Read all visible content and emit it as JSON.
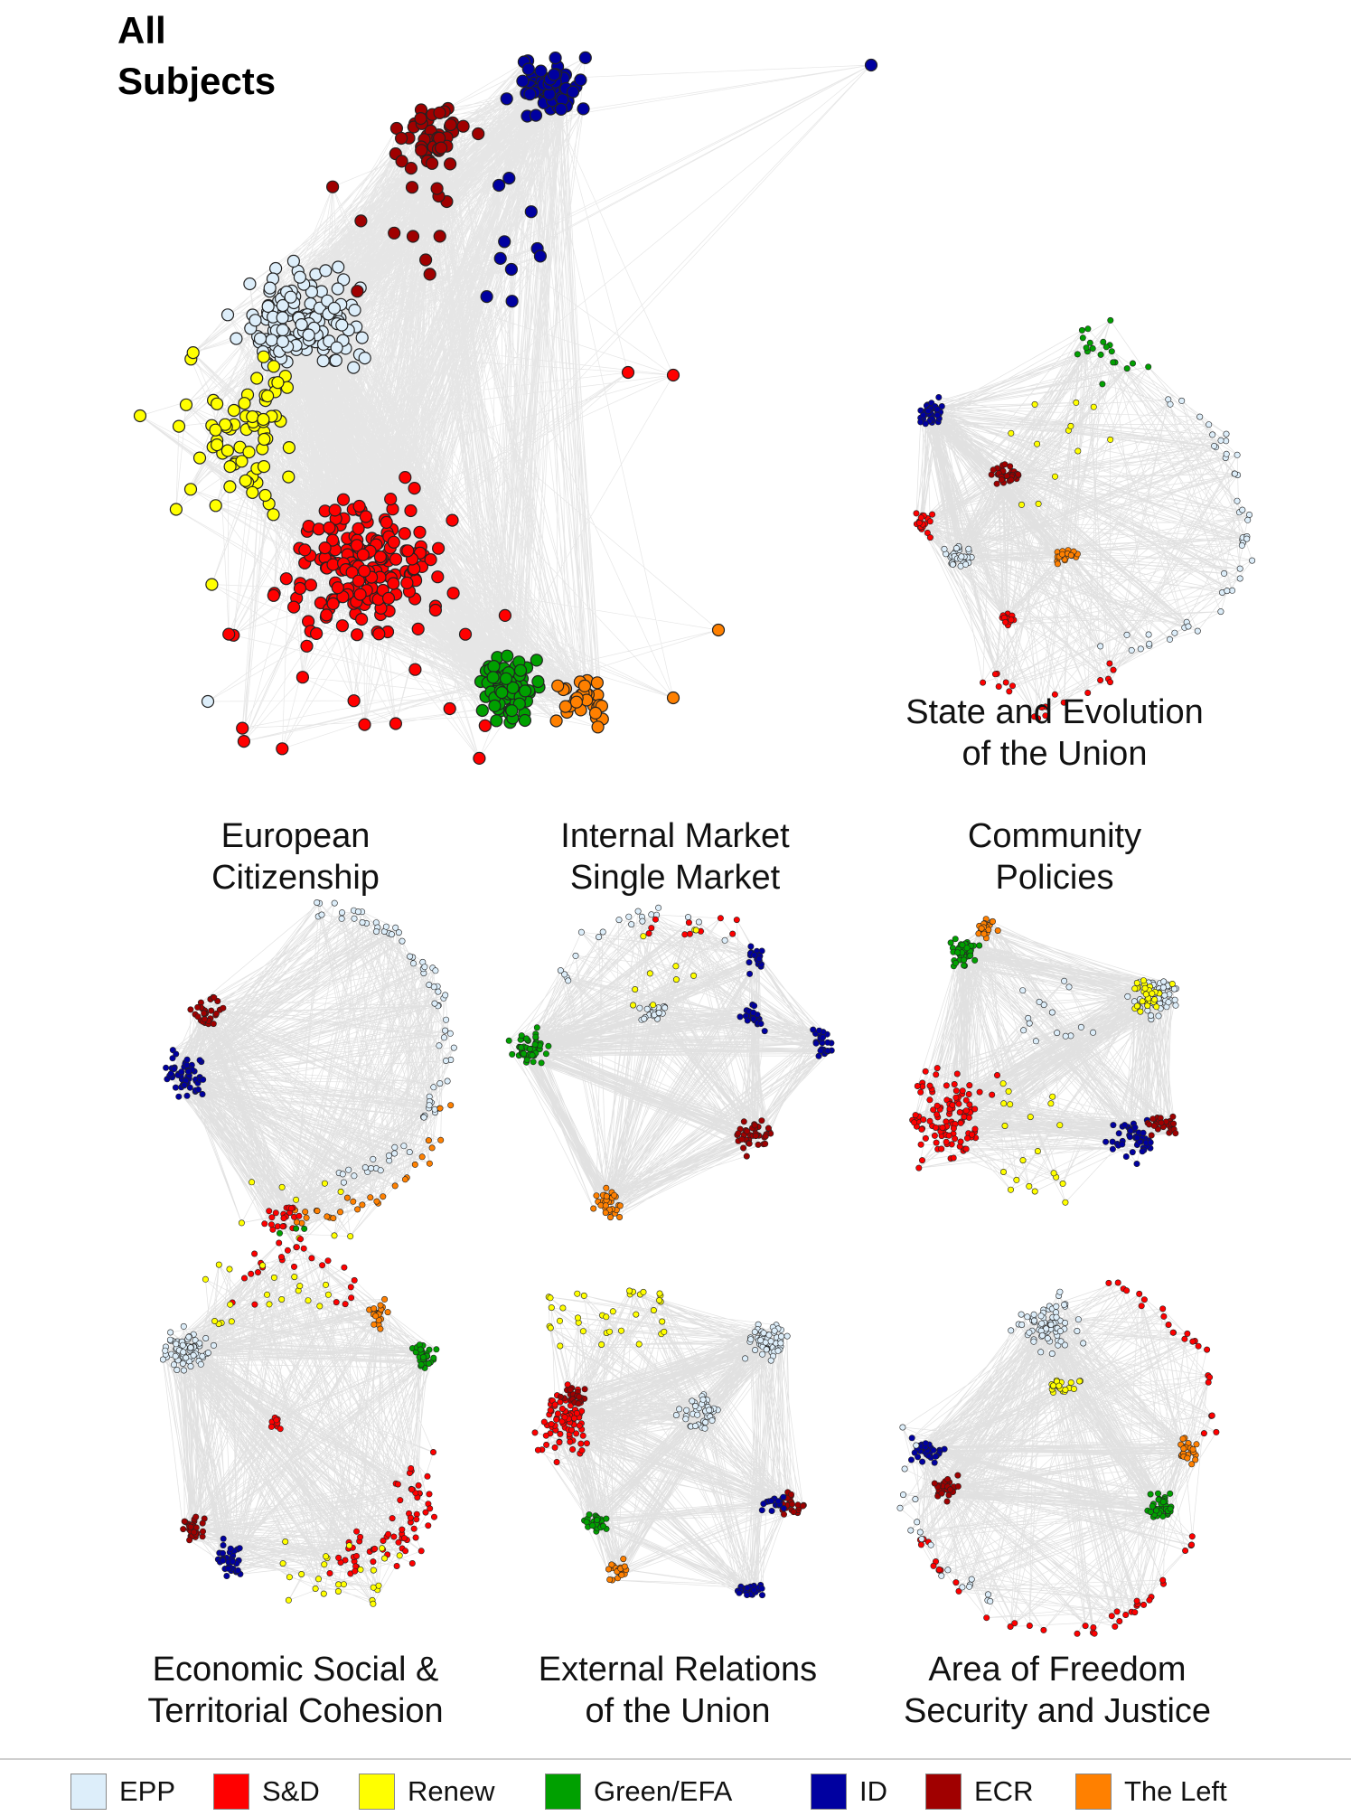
{
  "main_panel": {
    "title_lines": [
      "All",
      "Subjects"
    ]
  },
  "panels": [
    {
      "id": "state-evolution",
      "caption_lines": [
        "State and Evolution",
        "of the Union"
      ]
    },
    {
      "id": "european-citizenship",
      "caption_lines": [
        "European",
        "Citizenship"
      ]
    },
    {
      "id": "internal-market",
      "caption_lines": [
        "Internal Market",
        "Single Market"
      ]
    },
    {
      "id": "community-policies",
      "caption_lines": [
        "Community",
        "Policies"
      ]
    },
    {
      "id": "economic-social",
      "caption_lines": [
        "Economic Social &",
        "Territorial Cohesion"
      ]
    },
    {
      "id": "external-relations",
      "caption_lines": [
        "External Relations",
        "of the Union"
      ]
    },
    {
      "id": "freedom-security",
      "caption_lines": [
        "Area of Freedom",
        "Security and Justice"
      ]
    }
  ],
  "legend": [
    {
      "label": "EPP",
      "color": "#ddeefa"
    },
    {
      "label": "S&D",
      "color": "#ff0000"
    },
    {
      "label": "Renew",
      "color": "#ffff00"
    },
    {
      "label": "Green/EFA",
      "color": "#00a000"
    },
    {
      "label": "ID",
      "color": "#0000a0"
    },
    {
      "label": "ECR",
      "color": "#a00000"
    },
    {
      "label": "The Left",
      "color": "#ff8000"
    }
  ],
  "edge_color": "#c8c8c8"
}
